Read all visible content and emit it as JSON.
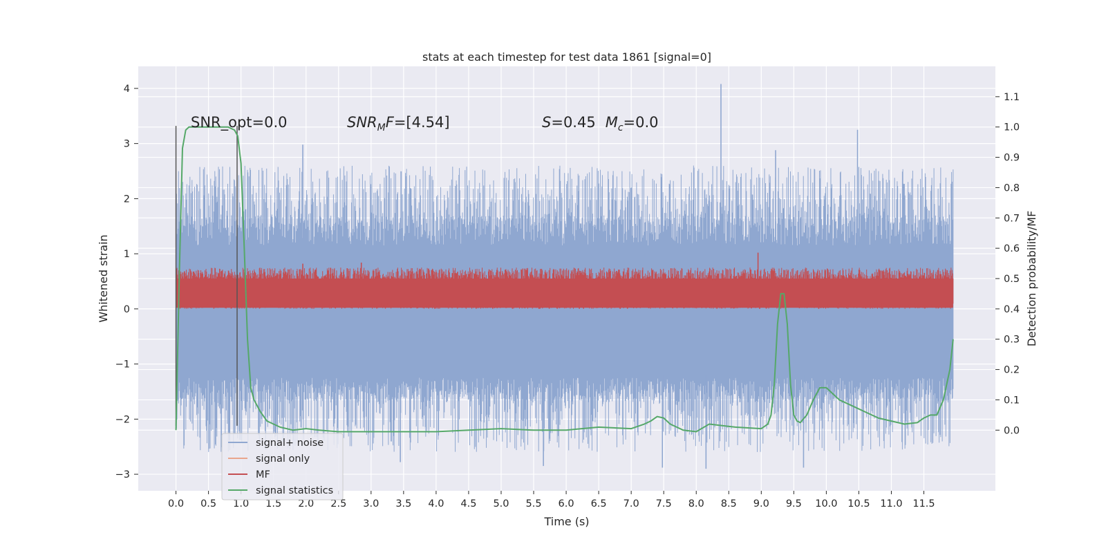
{
  "chart_data": {
    "type": "line",
    "title": "stats at each timestep for test data 1861 [signal=0]",
    "xlabel": "Time (s)",
    "ylabel": "Whitened strain",
    "ylabel_right": "Detection probability/MF",
    "xlim": [
      -0.58,
      12.6
    ],
    "ylim": [
      -3.3,
      4.4
    ],
    "ylim_right": [
      -0.2,
      1.2
    ],
    "x_ticks": [
      "0.0",
      "0.5",
      "1.0",
      "1.5",
      "2.0",
      "2.5",
      "3.0",
      "3.5",
      "4.0",
      "4.5",
      "5.0",
      "5.5",
      "6.0",
      "6.5",
      "7.0",
      "7.5",
      "8.0",
      "8.5",
      "9.0",
      "9.5",
      "10.0",
      "10.5",
      "11.0",
      "11.5"
    ],
    "x_tick_values": [
      0,
      0.5,
      1,
      1.5,
      2,
      2.5,
      3,
      3.5,
      4,
      4.5,
      5,
      5.5,
      6,
      6.5,
      7,
      7.5,
      8,
      8.5,
      9,
      9.5,
      10,
      10.5,
      11,
      11.5
    ],
    "y_ticks": [
      "4",
      "3",
      "2",
      "1",
      "0",
      "−1",
      "−2",
      "−3"
    ],
    "y_tick_values": [
      4,
      3,
      2,
      1,
      0,
      -1,
      -2,
      -3
    ],
    "y_right_ticks": [
      "1.1",
      "1.0",
      "0.9",
      "0.8",
      "0.7",
      "0.6",
      "0.5",
      "0.4",
      "0.3",
      "0.2",
      "0.1",
      "0.0"
    ],
    "y_right_tick_values": [
      1.1,
      1.0,
      0.9,
      0.8,
      0.7,
      0.6,
      0.5,
      0.4,
      0.3,
      0.2,
      0.1,
      0.0
    ],
    "grid": true,
    "legend_position": "lower-left",
    "noise_spikes": [
      {
        "x": 8.38,
        "y": 4.08
      },
      {
        "x": 10.48,
        "y": 3.25
      },
      {
        "x": 9.22,
        "y": 2.88
      },
      {
        "x": 1.95,
        "y": 2.98
      },
      {
        "x": 8.15,
        "y": -2.9
      },
      {
        "x": 7.48,
        "y": -2.88
      },
      {
        "x": 5.65,
        "y": -2.85
      },
      {
        "x": 9.65,
        "y": -2.88
      },
      {
        "x": 3.45,
        "y": -2.78
      }
    ],
    "mf_spikes": [
      {
        "x": 8.95,
        "y": 1.02
      },
      {
        "x": 2.85,
        "y": 0.84
      },
      {
        "x": 1.95,
        "y": 0.82
      }
    ],
    "series": [
      {
        "name": "signal+ noise",
        "color": "#8fa7d0",
        "envelope_upper": 1.15,
        "envelope_lower": -1.25,
        "peak_range_upper": [
          1.5,
          2.6
        ],
        "peak_range_lower": [
          -1.5,
          -2.6
        ]
      },
      {
        "name": "signal only",
        "color": "#e9a58c",
        "values": []
      },
      {
        "name": "MF",
        "color": "#c44e52",
        "band_upper": 0.55,
        "band_lower": 0.02
      },
      {
        "name": "signal statistics",
        "color": "#55a868",
        "axis": "right",
        "x": [
          0.0,
          0.05,
          0.1,
          0.15,
          0.2,
          0.3,
          0.5,
          0.7,
          0.8,
          0.9,
          0.95,
          1.0,
          1.05,
          1.1,
          1.15,
          1.2,
          1.3,
          1.4,
          1.6,
          1.8,
          2.0,
          2.2,
          2.5,
          3.0,
          4.0,
          5.0,
          5.5,
          6.0,
          6.5,
          7.0,
          7.2,
          7.3,
          7.4,
          7.5,
          7.6,
          7.7,
          7.8,
          8.0,
          8.2,
          8.4,
          8.6,
          9.0,
          9.1,
          9.15,
          9.2,
          9.25,
          9.3,
          9.35,
          9.4,
          9.45,
          9.5,
          9.55,
          9.6,
          9.7,
          9.8,
          9.9,
          10.0,
          10.1,
          10.2,
          10.4,
          10.6,
          10.8,
          11.0,
          11.2,
          11.4,
          11.5,
          11.6,
          11.7,
          11.8,
          11.9,
          11.95
        ],
        "values": [
          0.0,
          0.5,
          0.93,
          0.99,
          1.0,
          1.0,
          1.0,
          1.0,
          1.0,
          0.99,
          0.97,
          0.88,
          0.6,
          0.3,
          0.14,
          0.1,
          0.06,
          0.03,
          0.01,
          0.0,
          0.005,
          0.0,
          -0.005,
          -0.005,
          -0.005,
          0.005,
          0.0,
          0.0,
          0.01,
          0.005,
          0.02,
          0.03,
          0.045,
          0.04,
          0.02,
          0.01,
          0.0,
          -0.005,
          0.02,
          0.015,
          0.01,
          0.005,
          0.02,
          0.05,
          0.15,
          0.35,
          0.45,
          0.45,
          0.35,
          0.15,
          0.05,
          0.03,
          0.025,
          0.05,
          0.1,
          0.14,
          0.14,
          0.12,
          0.1,
          0.08,
          0.06,
          0.04,
          0.03,
          0.02,
          0.025,
          0.04,
          0.05,
          0.05,
          0.1,
          0.2,
          0.3
        ]
      }
    ],
    "vlines": [
      0.0,
      0.94
    ],
    "vlines_range": [
      -2.12,
      3.32
    ],
    "annotations": [
      {
        "text": "SNR_opt=0.0"
      },
      {
        "text_italic": "SNR",
        "sub": "M",
        "text_italic2": "F",
        "rest": "=[4.54]"
      },
      {
        "text_italic": "S",
        "rest": "=0.45",
        "text_italic_m": "M",
        "sub": "c",
        "rest2": "=0.0"
      }
    ]
  }
}
